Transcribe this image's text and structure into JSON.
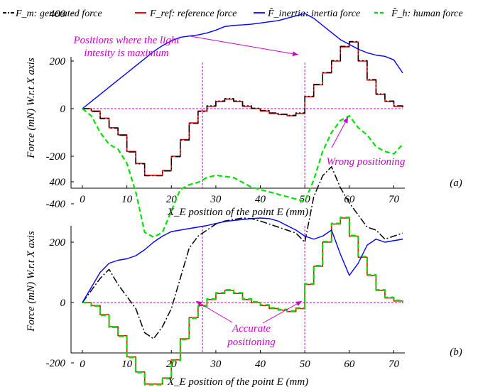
{
  "colors": {
    "generated": "#000000",
    "reference": "#ff0000",
    "inertia": "#0000ff",
    "human": "#00e000",
    "annotation": "#cc00cc"
  },
  "legend": [
    {
      "key": "generated",
      "label": "F_m: generated force",
      "style": "dash-dot"
    },
    {
      "key": "reference",
      "label": "F_ref: reference force",
      "style": "solid"
    },
    {
      "key": "inertia",
      "label": "F̂_inertia: inertia force",
      "style": "solid"
    },
    {
      "key": "human",
      "label": "F̂_h: human force",
      "style": "dashed"
    }
  ],
  "annotations": {
    "light_line1": "Positions where the light",
    "light_line2": "intesity is maximum",
    "wrong": "Wrong positioning",
    "accurate1": "Accurate",
    "accurate2": "positioning"
  },
  "chart_data": [
    {
      "type": "line",
      "panel": "(a)",
      "xlabel": "X_E position of the point E (mm)",
      "ylabel": "Force (mN) W.r.t X axis",
      "xlim": [
        0,
        72
      ],
      "ylim": [
        -500,
        420
      ],
      "x_ticks": [
        0,
        10,
        20,
        30,
        40,
        50,
        60,
        70
      ],
      "y_ticks": [
        -400,
        -200,
        0,
        200,
        400
      ],
      "vlines": [
        27,
        50
      ],
      "series": [
        {
          "key": "reference",
          "x": [
            0,
            2,
            4,
            6,
            8,
            10,
            12,
            14,
            16,
            18,
            20,
            22,
            24,
            26,
            28,
            30,
            32,
            34,
            36,
            38,
            40,
            42,
            44,
            46,
            48,
            50,
            52,
            54,
            56,
            58,
            60,
            62,
            64,
            66,
            68,
            70,
            72
          ],
          "y": [
            0,
            -10,
            -40,
            -80,
            -110,
            -180,
            -230,
            -280,
            -280,
            -260,
            -200,
            -130,
            -60,
            -10,
            10,
            30,
            40,
            30,
            10,
            0,
            -10,
            -20,
            -25,
            -30,
            -20,
            50,
            100,
            150,
            200,
            260,
            280,
            200,
            120,
            60,
            30,
            10,
            5
          ]
        },
        {
          "key": "generated",
          "x": [
            0,
            2,
            4,
            6,
            8,
            10,
            12,
            14,
            16,
            18,
            20,
            22,
            24,
            26,
            28,
            30,
            32,
            34,
            36,
            38,
            40,
            42,
            44,
            46,
            48,
            50,
            52,
            54,
            56,
            58,
            60,
            62,
            64,
            66,
            68,
            70,
            72
          ],
          "y": [
            0,
            -12,
            -42,
            -82,
            -112,
            -182,
            -232,
            -282,
            -282,
            -262,
            -202,
            -132,
            -62,
            -12,
            12,
            32,
            42,
            32,
            12,
            2,
            -8,
            -18,
            -23,
            -28,
            -18,
            52,
            102,
            152,
            202,
            262,
            282,
            202,
            122,
            62,
            32,
            12,
            7
          ]
        },
        {
          "key": "inertia",
          "x": [
            0,
            2,
            4,
            6,
            8,
            10,
            12,
            14,
            16,
            18,
            20,
            22,
            24,
            26,
            28,
            30,
            32,
            34,
            36,
            38,
            40,
            42,
            44,
            46,
            48,
            50,
            52,
            54,
            56,
            58,
            60,
            62,
            64,
            66,
            68,
            70,
            72
          ],
          "y": [
            0,
            30,
            60,
            90,
            120,
            150,
            180,
            210,
            240,
            265,
            285,
            300,
            305,
            310,
            318,
            330,
            345,
            350,
            352,
            355,
            360,
            365,
            370,
            380,
            390,
            400,
            380,
            350,
            320,
            290,
            270,
            250,
            235,
            225,
            220,
            205,
            150
          ]
        },
        {
          "key": "human",
          "x": [
            0,
            2,
            4,
            6,
            8,
            10,
            12,
            14,
            16,
            18,
            20,
            22,
            24,
            26,
            28,
            30,
            32,
            34,
            36,
            38,
            40,
            42,
            44,
            46,
            48,
            50,
            52,
            54,
            56,
            58,
            60,
            62,
            64,
            66,
            68,
            70,
            72
          ],
          "y": [
            0,
            -30,
            -100,
            -150,
            -170,
            -230,
            -350,
            -520,
            -540,
            -520,
            -430,
            -340,
            -320,
            -310,
            -290,
            -280,
            -285,
            -290,
            -310,
            -330,
            -340,
            -350,
            -360,
            -370,
            -380,
            -390,
            -300,
            -180,
            -100,
            -50,
            -30,
            -80,
            -110,
            -160,
            -180,
            -190,
            -150
          ]
        }
      ]
    },
    {
      "type": "line",
      "panel": "(b)",
      "xlabel": "X_E position of the point E (mm)",
      "ylabel": "Force (mN) W.r.t X axis",
      "xlim": [
        0,
        72
      ],
      "ylim": [
        -300,
        520
      ],
      "x_ticks": [
        0,
        10,
        20,
        30,
        40,
        50,
        60,
        70
      ],
      "y_ticks": [
        -200,
        0,
        200,
        400
      ],
      "vlines": [
        27,
        50
      ],
      "series": [
        {
          "key": "reference",
          "x": [
            0,
            2,
            4,
            6,
            8,
            10,
            12,
            14,
            16,
            18,
            20,
            22,
            24,
            26,
            28,
            30,
            32,
            34,
            36,
            38,
            40,
            42,
            44,
            46,
            48,
            50,
            52,
            54,
            56,
            58,
            60,
            62,
            64,
            66,
            68,
            70,
            72
          ],
          "y": [
            0,
            -10,
            -40,
            -80,
            -110,
            -180,
            -230,
            -270,
            -270,
            -250,
            -190,
            -120,
            -50,
            -10,
            10,
            30,
            40,
            30,
            10,
            0,
            -10,
            -20,
            -25,
            -30,
            -20,
            60,
            120,
            200,
            260,
            280,
            220,
            150,
            90,
            40,
            15,
            5,
            0
          ]
        },
        {
          "key": "human",
          "x": [
            0,
            2,
            4,
            6,
            8,
            10,
            12,
            14,
            16,
            18,
            20,
            22,
            24,
            26,
            28,
            30,
            32,
            34,
            36,
            38,
            40,
            42,
            44,
            46,
            48,
            50,
            52,
            54,
            56,
            58,
            60,
            62,
            64,
            66,
            68,
            70,
            72
          ],
          "y": [
            0,
            -12,
            -42,
            -82,
            -112,
            -182,
            -232,
            -272,
            -272,
            -252,
            -192,
            -122,
            -52,
            -12,
            12,
            32,
            42,
            32,
            12,
            2,
            -8,
            -18,
            -23,
            -28,
            -18,
            62,
            122,
            202,
            262,
            282,
            222,
            152,
            92,
            42,
            17,
            7,
            2
          ]
        },
        {
          "key": "generated",
          "x": [
            0,
            2,
            4,
            6,
            8,
            10,
            12,
            14,
            16,
            18,
            20,
            22,
            24,
            26,
            28,
            30,
            32,
            34,
            36,
            38,
            40,
            42,
            44,
            46,
            48,
            50,
            52,
            54,
            56,
            58,
            60,
            62,
            64,
            66,
            68,
            70,
            72
          ],
          "y": [
            0,
            40,
            80,
            110,
            60,
            20,
            -20,
            -100,
            -120,
            -80,
            -20,
            80,
            180,
            220,
            240,
            260,
            270,
            275,
            280,
            278,
            270,
            260,
            250,
            240,
            230,
            200,
            350,
            420,
            450,
            380,
            330,
            290,
            250,
            240,
            210,
            220,
            230
          ]
        },
        {
          "key": "inertia",
          "x": [
            0,
            2,
            4,
            6,
            8,
            10,
            12,
            14,
            16,
            18,
            20,
            22,
            24,
            26,
            28,
            30,
            32,
            34,
            36,
            38,
            40,
            42,
            44,
            46,
            48,
            50,
            52,
            54,
            56,
            58,
            60,
            62,
            64,
            66,
            68,
            70,
            72
          ],
          "y": [
            0,
            50,
            100,
            130,
            140,
            145,
            155,
            175,
            200,
            220,
            235,
            240,
            245,
            250,
            255,
            262,
            268,
            272,
            275,
            278,
            280,
            278,
            270,
            255,
            240,
            220,
            210,
            220,
            240,
            160,
            90,
            130,
            190,
            210,
            200,
            205,
            210
          ]
        }
      ]
    }
  ]
}
